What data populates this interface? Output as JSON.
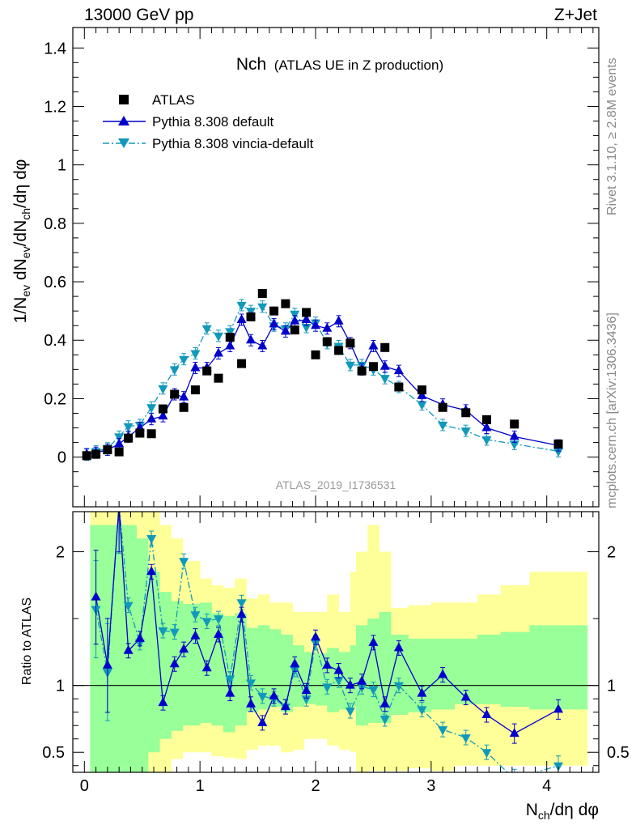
{
  "header": {
    "left": "13000 GeV pp",
    "right": "Z+Jet"
  },
  "side_labels": {
    "rivet": "Rivet 3.1.10, ≥ 2.8M events",
    "mcplots": "mcplots.cern.ch [arXiv:1306.3436]"
  },
  "colors": {
    "atlas": "#000000",
    "pythia_default": "#0000cc",
    "pythia_vincia": "#1199bb",
    "band_inner": "#99ff99",
    "band_outer": "#ffff99"
  },
  "chart_data": [
    {
      "type": "scatter",
      "title": "Nch",
      "subtitle": "(ATLAS UE in Z production)",
      "analysis_label": "ATLAS_2019_I1736531",
      "ylabel_parts": [
        "1/N",
        "ev",
        " dN",
        "ev",
        "/dN",
        "ch",
        "/dη dφ"
      ],
      "xlim": [
        -0.1,
        4.45
      ],
      "ylim": [
        -0.17,
        1.47
      ],
      "y_ticks": [
        0,
        0.2,
        0.4,
        0.6,
        0.8,
        1,
        1.2,
        1.4
      ],
      "y_tick_labels": [
        "0",
        "0.2",
        "0.4",
        "0.6",
        "0.8",
        "1",
        "1.2",
        "1.4"
      ],
      "legend": {
        "placement": "top-left",
        "entries": [
          "ATLAS",
          "Pythia 8.308 default",
          "Pythia 8.308 vincia-default"
        ]
      },
      "series": [
        {
          "name": "ATLAS",
          "marker": "square",
          "points": [
            [
              0.02,
              0.005
            ],
            [
              0.1,
              0.01
            ],
            [
              0.2,
              0.025
            ],
            [
              0.3,
              0.018
            ],
            [
              0.38,
              0.065
            ],
            [
              0.48,
              0.082
            ],
            [
              0.58,
              0.08
            ],
            [
              0.68,
              0.165
            ],
            [
              0.78,
              0.215
            ],
            [
              0.86,
              0.17
            ],
            [
              0.96,
              0.23
            ],
            [
              1.06,
              0.295
            ],
            [
              1.16,
              0.27
            ],
            [
              1.26,
              0.41
            ],
            [
              1.36,
              0.32
            ],
            [
              1.44,
              0.48
            ],
            [
              1.54,
              0.56
            ],
            [
              1.64,
              0.5
            ],
            [
              1.74,
              0.525
            ],
            [
              1.82,
              0.435
            ],
            [
              1.92,
              0.495
            ],
            [
              2.0,
              0.35
            ],
            [
              2.1,
              0.395
            ],
            [
              2.2,
              0.365
            ],
            [
              2.3,
              0.39
            ],
            [
              2.4,
              0.295
            ],
            [
              2.5,
              0.31
            ],
            [
              2.6,
              0.375
            ],
            [
              2.72,
              0.24
            ],
            [
              2.92,
              0.23
            ],
            [
              3.1,
              0.17
            ],
            [
              3.3,
              0.152
            ],
            [
              3.48,
              0.128
            ],
            [
              3.72,
              0.113
            ],
            [
              4.1,
              0.045
            ]
          ]
        },
        {
          "name": "Pythia 8.308 default",
          "marker": "triangle-up",
          "points": [
            [
              0.02,
              0.01
            ],
            [
              0.1,
              0.015
            ],
            [
              0.2,
              0.025
            ],
            [
              0.3,
              0.045
            ],
            [
              0.38,
              0.07
            ],
            [
              0.48,
              0.1
            ],
            [
              0.58,
              0.13
            ],
            [
              0.68,
              0.14
            ],
            [
              0.78,
              0.215
            ],
            [
              0.86,
              0.205
            ],
            [
              0.96,
              0.305
            ],
            [
              1.06,
              0.305
            ],
            [
              1.16,
              0.355
            ],
            [
              1.26,
              0.38
            ],
            [
              1.36,
              0.47
            ],
            [
              1.44,
              0.4
            ],
            [
              1.54,
              0.38
            ],
            [
              1.64,
              0.455
            ],
            [
              1.74,
              0.43
            ],
            [
              1.82,
              0.465
            ],
            [
              1.92,
              0.47
            ],
            [
              2.0,
              0.45
            ],
            [
              2.1,
              0.44
            ],
            [
              2.2,
              0.465
            ],
            [
              2.3,
              0.39
            ],
            [
              2.4,
              0.3
            ],
            [
              2.5,
              0.38
            ],
            [
              2.6,
              0.31
            ],
            [
              2.72,
              0.295
            ],
            [
              2.92,
              0.21
            ],
            [
              3.1,
              0.18
            ],
            [
              3.3,
              0.16
            ],
            [
              3.48,
              0.1
            ],
            [
              3.72,
              0.07
            ],
            [
              4.1,
              0.04
            ]
          ]
        },
        {
          "name": "Pythia 8.308 vincia-default",
          "marker": "triangle-down",
          "points": [
            [
              0.02,
              0.008
            ],
            [
              0.1,
              0.02
            ],
            [
              0.2,
              0.03
            ],
            [
              0.3,
              0.07
            ],
            [
              0.38,
              0.105
            ],
            [
              0.48,
              0.11
            ],
            [
              0.58,
              0.17
            ],
            [
              0.68,
              0.235
            ],
            [
              0.78,
              0.3
            ],
            [
              0.86,
              0.335
            ],
            [
              0.96,
              0.355
            ],
            [
              1.06,
              0.44
            ],
            [
              1.16,
              0.415
            ],
            [
              1.26,
              0.43
            ],
            [
              1.36,
              0.52
            ],
            [
              1.44,
              0.5
            ],
            [
              1.54,
              0.515
            ],
            [
              1.64,
              0.45
            ],
            [
              1.74,
              0.44
            ],
            [
              1.82,
              0.49
            ],
            [
              1.92,
              0.445
            ],
            [
              2.0,
              0.46
            ],
            [
              2.1,
              0.39
            ],
            [
              2.2,
              0.38
            ],
            [
              2.3,
              0.315
            ],
            [
              2.4,
              0.315
            ],
            [
              2.5,
              0.3
            ],
            [
              2.6,
              0.27
            ],
            [
              2.72,
              0.24
            ],
            [
              2.92,
              0.18
            ],
            [
              3.1,
              0.11
            ],
            [
              3.3,
              0.09
            ],
            [
              3.48,
              0.06
            ],
            [
              3.72,
              0.045
            ],
            [
              4.1,
              0.02
            ]
          ]
        }
      ]
    },
    {
      "type": "line",
      "ylabel": "Ratio to ATLAS",
      "xlabel": "N_ch/dη dφ",
      "xlabel_parts": [
        "N",
        "ch",
        "/dη dφ"
      ],
      "xlim": [
        -0.1,
        4.45
      ],
      "ylim": [
        0.35,
        2.3
      ],
      "x_ticks": [
        0,
        1,
        2,
        3,
        4
      ],
      "x_tick_labels": [
        "0",
        "1",
        "2",
        "3",
        "4"
      ],
      "y_ticks": [
        0.5,
        1,
        2
      ],
      "y_tick_labels": [
        "0.5",
        "1",
        "2"
      ],
      "ref_line": 1,
      "bands": {
        "bin_edges": [
          0.05,
          0.15,
          0.25,
          0.35,
          0.45,
          0.55,
          0.65,
          0.75,
          0.85,
          1.0,
          1.1,
          1.2,
          1.3,
          1.4,
          1.5,
          1.6,
          1.7,
          1.8,
          1.9,
          2.0,
          2.1,
          2.2,
          2.3,
          2.35,
          2.45,
          2.55,
          2.65,
          2.8,
          3.0,
          3.2,
          3.4,
          3.6,
          3.85,
          4.35
        ],
        "inner_low": [
          0.3,
          0.3,
          0.3,
          0.3,
          0.3,
          0.5,
          0.6,
          0.66,
          0.7,
          0.72,
          0.7,
          0.65,
          0.7,
          0.8,
          0.82,
          0.84,
          0.8,
          0.84,
          0.86,
          0.85,
          0.8,
          0.82,
          0.84,
          0.7,
          0.72,
          0.72,
          0.78,
          0.8,
          0.82,
          0.86,
          0.86,
          0.84,
          0.82
        ],
        "inner_high": [
          2.2,
          2.2,
          2.2,
          2.2,
          2.1,
          1.85,
          1.7,
          1.63,
          1.61,
          1.62,
          1.54,
          1.52,
          1.54,
          1.43,
          1.45,
          1.42,
          1.38,
          1.3,
          1.25,
          1.24,
          1.28,
          1.25,
          1.3,
          1.45,
          1.5,
          1.55,
          1.38,
          1.35,
          1.35,
          1.35,
          1.38,
          1.4,
          1.45
        ],
        "outer_low": [
          0.3,
          0.3,
          0.3,
          0.3,
          0.3,
          0.3,
          0.3,
          0.45,
          0.5,
          0.5,
          0.47,
          0.46,
          0.45,
          0.52,
          0.55,
          0.55,
          0.5,
          0.52,
          0.6,
          0.6,
          0.55,
          0.52,
          0.5,
          0.3,
          0.36,
          0.36,
          0.36,
          0.38,
          0.36,
          0.4,
          0.4,
          0.4,
          0.4
        ],
        "outer_high": [
          2.3,
          2.3,
          2.3,
          2.3,
          2.3,
          2.3,
          2.2,
          2.1,
          1.93,
          1.8,
          1.75,
          1.73,
          1.8,
          1.65,
          1.68,
          1.62,
          1.62,
          1.55,
          1.55,
          1.55,
          1.68,
          1.55,
          1.85,
          2.0,
          2.2,
          2.0,
          1.58,
          1.6,
          1.62,
          1.62,
          1.68,
          1.75,
          1.85
        ]
      },
      "series": [
        {
          "name": "Pythia 8.308 default",
          "marker": "triangle-up",
          "points": [
            [
              0.1,
              1.66
            ],
            [
              0.2,
              1.15
            ],
            [
              0.3,
              2.35
            ],
            [
              0.38,
              1.26
            ],
            [
              0.48,
              1.35
            ],
            [
              0.58,
              1.85
            ],
            [
              0.68,
              0.87
            ],
            [
              0.78,
              1.16
            ],
            [
              0.86,
              1.27
            ],
            [
              0.96,
              1.37
            ],
            [
              1.06,
              1.13
            ],
            [
              1.16,
              1.38
            ],
            [
              1.26,
              0.94
            ],
            [
              1.36,
              1.53
            ],
            [
              1.44,
              0.86
            ],
            [
              1.54,
              0.72
            ],
            [
              1.64,
              0.92
            ],
            [
              1.74,
              0.84
            ],
            [
              1.82,
              1.16
            ],
            [
              1.92,
              0.96
            ],
            [
              2.0,
              1.36
            ],
            [
              2.1,
              1.15
            ],
            [
              2.2,
              1.11
            ],
            [
              2.3,
              1.0
            ],
            [
              2.4,
              1.03
            ],
            [
              2.5,
              1.32
            ],
            [
              2.6,
              0.86
            ],
            [
              2.72,
              1.28
            ],
            [
              2.92,
              0.94
            ],
            [
              3.1,
              1.08
            ],
            [
              3.3,
              0.91
            ],
            [
              3.48,
              0.78
            ],
            [
              3.72,
              0.64
            ],
            [
              4.1,
              0.82
            ]
          ]
        },
        {
          "name": "Pythia 8.308 vincia-default",
          "marker": "triangle-down",
          "points": [
            [
              0.1,
              1.57
            ],
            [
              0.2,
              1.1
            ],
            [
              0.3,
              2.35
            ],
            [
              0.38,
              1.6
            ],
            [
              0.48,
              1.32
            ],
            [
              0.58,
              2.1
            ],
            [
              0.68,
              1.41
            ],
            [
              0.78,
              1.4
            ],
            [
              0.86,
              1.93
            ],
            [
              0.96,
              1.53
            ],
            [
              1.06,
              1.48
            ],
            [
              1.16,
              1.5
            ],
            [
              1.26,
              1.05
            ],
            [
              1.36,
              1.62
            ],
            [
              1.44,
              1.02
            ],
            [
              1.54,
              0.92
            ],
            [
              1.64,
              0.9
            ],
            [
              1.74,
              0.84
            ],
            [
              1.82,
              1.12
            ],
            [
              1.92,
              0.9
            ],
            [
              2.0,
              1.32
            ],
            [
              2.1,
              0.99
            ],
            [
              2.2,
              1.04
            ],
            [
              2.3,
              0.81
            ],
            [
              2.4,
              0.99
            ],
            [
              2.5,
              0.97
            ],
            [
              2.6,
              0.75
            ],
            [
              2.72,
              1.0
            ],
            [
              2.92,
              0.82
            ],
            [
              3.1,
              0.67
            ],
            [
              3.3,
              0.61
            ],
            [
              3.48,
              0.5
            ],
            [
              3.72,
              0.3
            ],
            [
              4.1,
              0.4
            ]
          ]
        }
      ]
    }
  ]
}
